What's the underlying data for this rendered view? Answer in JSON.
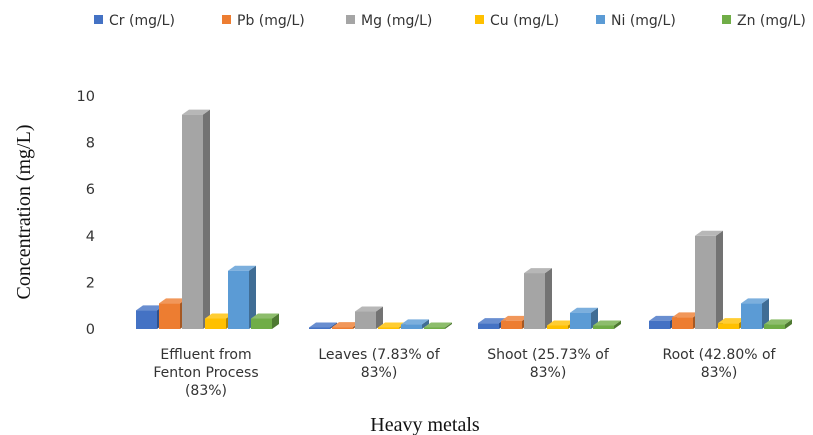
{
  "chart_data": {
    "type": "bar",
    "title": "",
    "xlabel": "Heavy metals",
    "ylabel": "Concentration (mg/L)",
    "ylim": [
      0,
      10
    ],
    "yticks": [
      "0",
      "2",
      "4",
      "6",
      "8",
      "10"
    ],
    "grid": false,
    "legend_position": "top",
    "categories": [
      [
        "Effluent from",
        "Fenton Process",
        "(83%)"
      ],
      [
        "Leaves (7.83% of",
        "83%)"
      ],
      [
        "Shoot (25.73% of",
        "83%)"
      ],
      [
        "Root (42.80% of",
        "83%)"
      ]
    ],
    "series": [
      {
        "name": "Cr (mg/L)",
        "color": "#4472C4",
        "values": [
          0.8,
          0.05,
          0.25,
          0.35
        ]
      },
      {
        "name": "Pb (mg/L)",
        "color": "#ED7D31",
        "values": [
          1.1,
          0.08,
          0.35,
          0.5
        ]
      },
      {
        "name": "Mg (mg/L)",
        "color": "#A5A5A5",
        "values": [
          9.2,
          0.75,
          2.4,
          4.0
        ]
      },
      {
        "name": "Cu (mg/L)",
        "color": "#FFC000",
        "values": [
          0.45,
          0.04,
          0.15,
          0.25
        ]
      },
      {
        "name": "Ni (mg/L)",
        "color": "#5B9BD5",
        "values": [
          2.5,
          0.2,
          0.7,
          1.1
        ]
      },
      {
        "name": "Zn (mg/L)",
        "color": "#70AD47",
        "values": [
          0.45,
          0.04,
          0.15,
          0.2
        ]
      }
    ]
  }
}
